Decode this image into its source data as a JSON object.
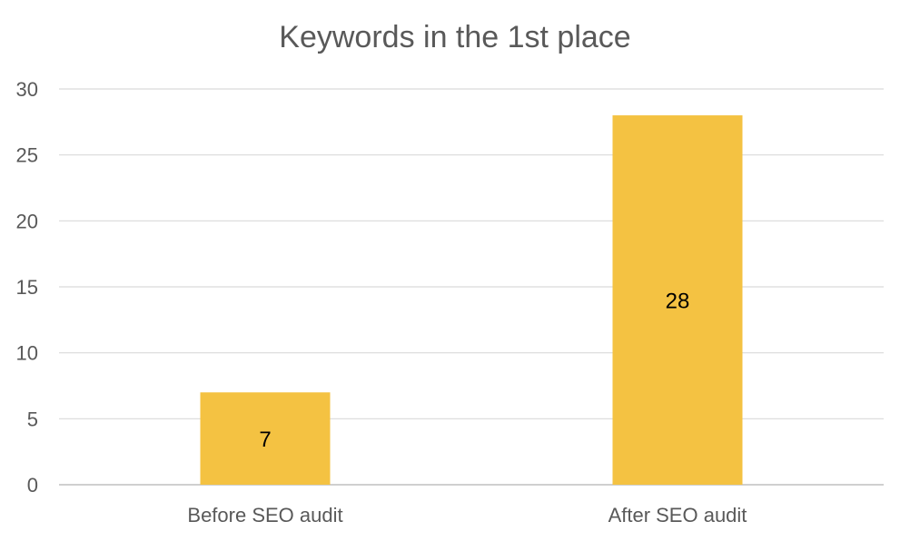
{
  "chart_data": {
    "type": "bar",
    "title": "Keywords in the 1st place",
    "categories": [
      "Before SEO audit",
      "After SEO audit"
    ],
    "values": [
      7,
      28
    ],
    "data_labels": [
      "7",
      "28"
    ],
    "xlabel": "",
    "ylabel": "",
    "ylim": [
      0,
      30
    ],
    "y_ticks": [
      0,
      5,
      10,
      15,
      20,
      25,
      30
    ],
    "grid": true,
    "legend": "none",
    "bar_color": "#F4C242"
  }
}
